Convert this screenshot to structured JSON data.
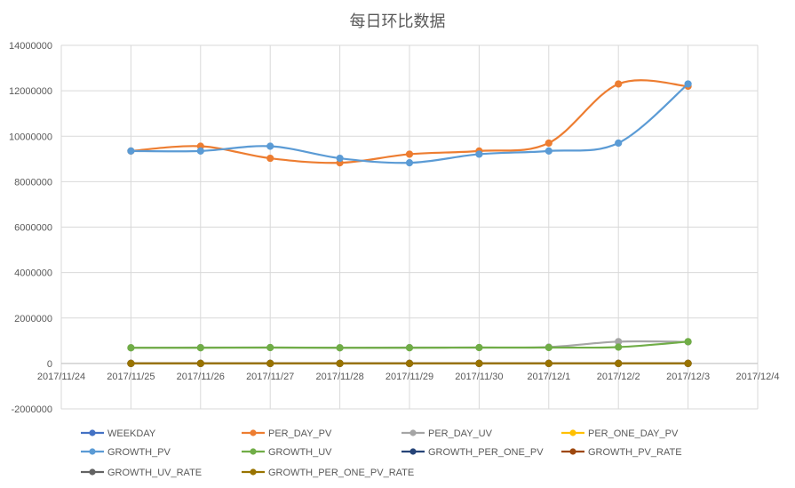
{
  "chart_data": {
    "type": "line",
    "title": "每日环比数据",
    "xlabel": "",
    "ylabel": "",
    "categories": [
      "2017/11/24",
      "2017/11/25",
      "2017/11/26",
      "2017/11/27",
      "2017/11/28",
      "2017/11/29",
      "2017/11/30",
      "2017/12/1",
      "2017/12/2",
      "2017/12/3",
      "2017/12/4"
    ],
    "y_ticks": [
      "-2000000",
      "0",
      "2000000",
      "4000000",
      "6000000",
      "8000000",
      "10000000",
      "12000000",
      "14000000"
    ],
    "ylim": [
      -2000000,
      14000000
    ],
    "grid": true,
    "smooth": true,
    "legend_position": "bottom",
    "series": [
      {
        "name": "WEEKDAY",
        "color": "#4472C4",
        "values": [
          null,
          1,
          2,
          3,
          4,
          5,
          6,
          7,
          1,
          2,
          null
        ]
      },
      {
        "name": "PER_DAY_PV",
        "color": "#ED7D31",
        "values": [
          null,
          9350000,
          9560000,
          9030000,
          8830000,
          9210000,
          9350000,
          9700000,
          12300000,
          12200000,
          null
        ]
      },
      {
        "name": "PER_DAY_UV",
        "color": "#A5A5A5",
        "values": [
          null,
          690000,
          700000,
          700000,
          690000,
          700000,
          700000,
          720000,
          960000,
          950000,
          null
        ]
      },
      {
        "name": "PER_ONE_DAY_PV",
        "color": "#FFC000",
        "values": [
          null,
          13,
          13,
          13,
          13,
          13,
          13,
          13,
          13,
          13,
          null
        ]
      },
      {
        "name": "GROWTH_PV",
        "color": "#5B9BD5",
        "values": [
          null,
          9350000,
          9350000,
          9560000,
          9030000,
          8830000,
          9210000,
          9350000,
          9700000,
          12300000,
          null
        ]
      },
      {
        "name": "GROWTH_UV",
        "color": "#70AD47",
        "values": [
          null,
          690000,
          690000,
          700000,
          690000,
          690000,
          700000,
          700000,
          720000,
          960000,
          null
        ]
      },
      {
        "name": "GROWTH_PER_ONE_PV",
        "color": "#264478",
        "values": [
          null,
          13,
          13,
          13,
          13,
          13,
          13,
          13,
          13,
          13,
          null
        ]
      },
      {
        "name": "GROWTH_PV_RATE",
        "color": "#9E480E",
        "values": [
          null,
          0,
          0,
          0,
          0,
          0,
          0,
          0,
          0,
          0,
          null
        ]
      },
      {
        "name": "GROWTH_UV_RATE",
        "color": "#636363",
        "values": [
          null,
          0,
          0,
          0,
          0,
          0,
          0,
          0,
          0,
          0,
          null
        ]
      },
      {
        "name": "GROWTH_PER_ONE_PV_RATE",
        "color": "#997300",
        "values": [
          null,
          0,
          0,
          0,
          0,
          0,
          0,
          0,
          0,
          0,
          null
        ]
      }
    ]
  }
}
